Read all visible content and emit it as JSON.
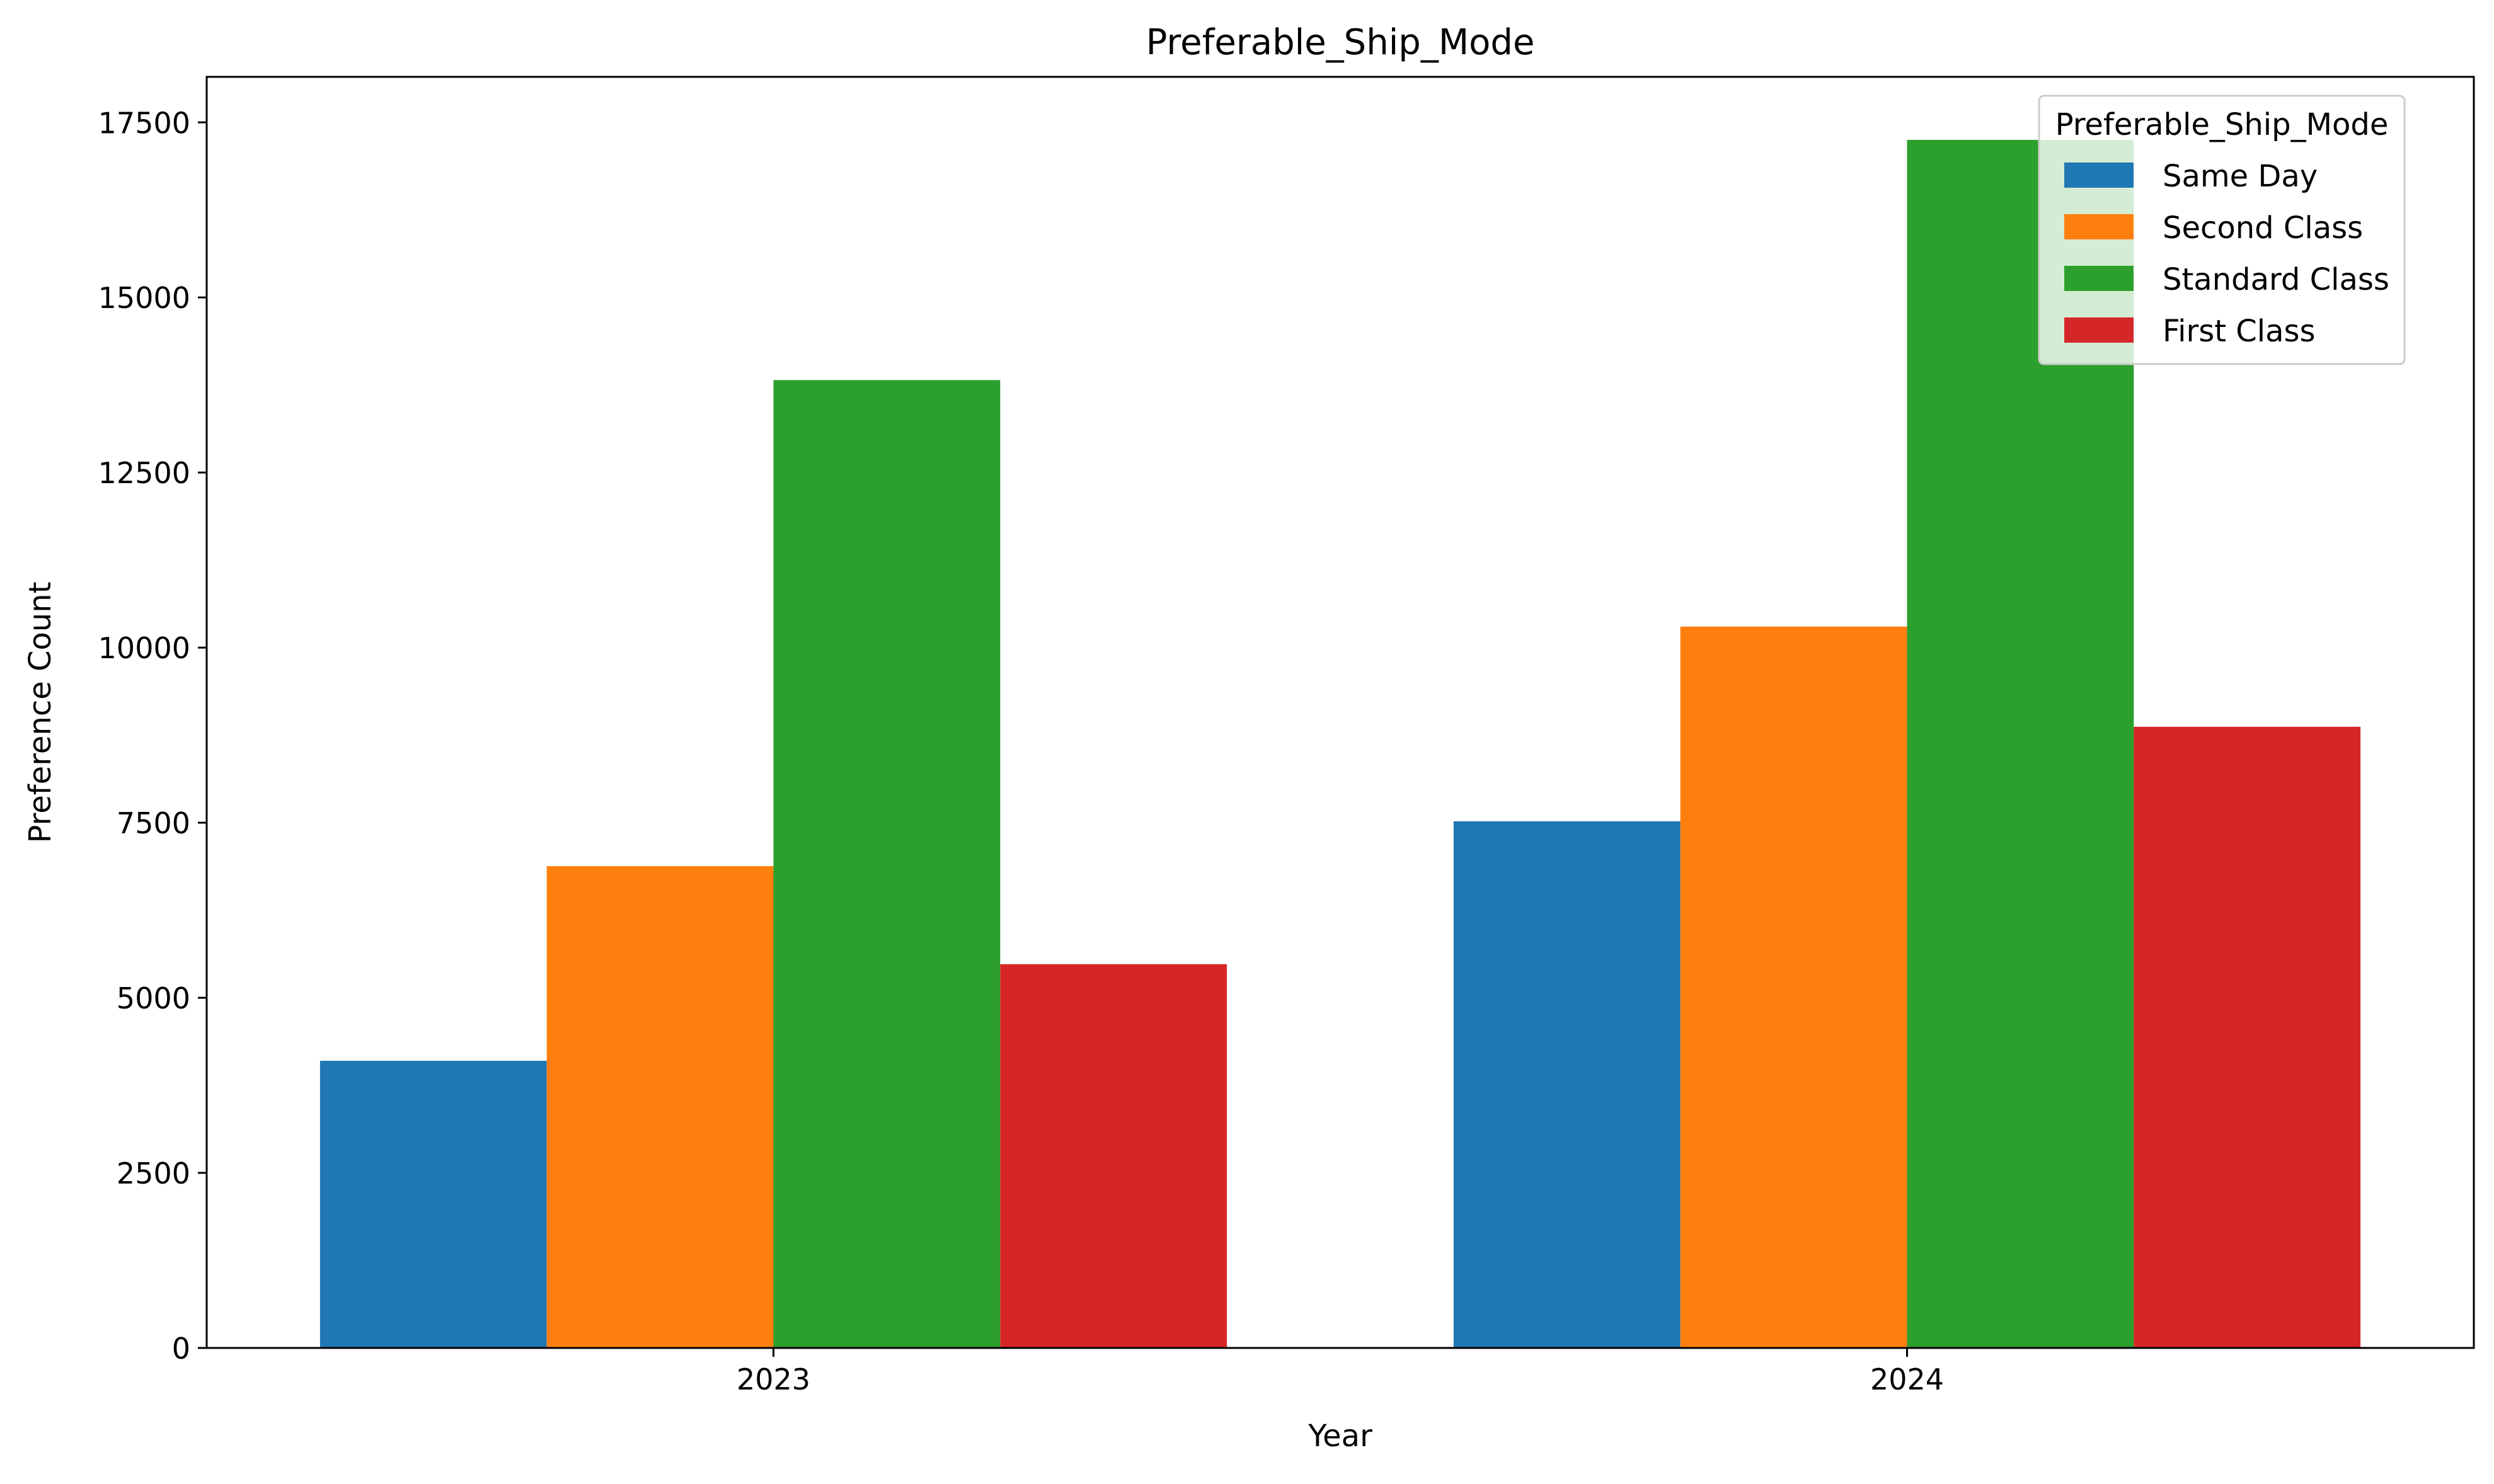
{
  "chart_data": {
    "type": "bar",
    "title": "Preferable_Ship_Mode",
    "xlabel": "Year",
    "ylabel": "Preference Count",
    "categories": [
      "2023",
      "2024"
    ],
    "series": [
      {
        "name": "Same Day",
        "color": "#1f77b4",
        "values": [
          4100,
          7520
        ]
      },
      {
        "name": "Second Class",
        "color": "#ff7f0e",
        "values": [
          6880,
          10300
        ]
      },
      {
        "name": "Standard Class",
        "color": "#2ca02c",
        "values": [
          13820,
          17250
        ]
      },
      {
        "name": "First Class",
        "color": "#d62728",
        "values": [
          5480,
          8870
        ]
      }
    ],
    "yticks": [
      "0",
      "2500",
      "5000",
      "7500",
      "10000",
      "12500",
      "15000",
      "17500"
    ],
    "ylim": [
      0,
      18150
    ],
    "grid": false,
    "legend": {
      "title": "Preferable_Ship_Mode",
      "placement": "top-right"
    }
  }
}
